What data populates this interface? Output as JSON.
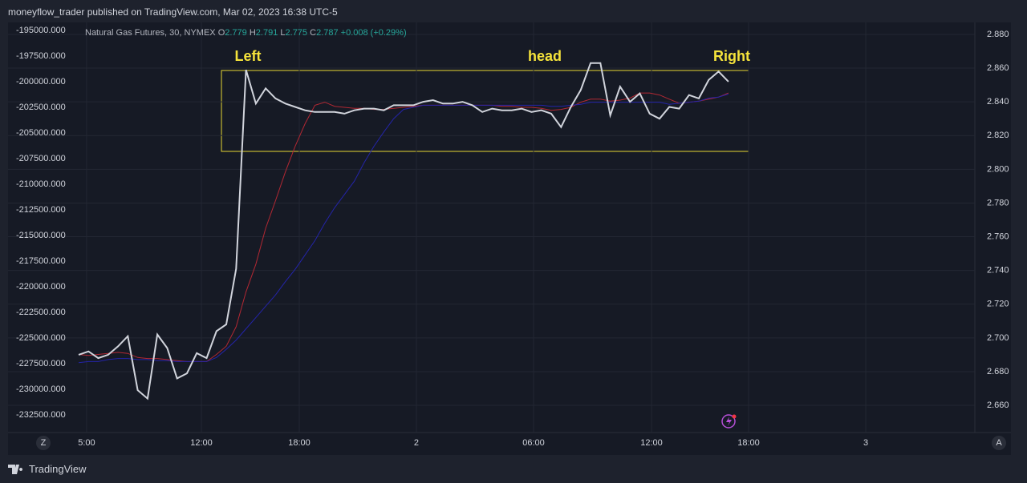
{
  "header": {
    "text": "moneyflow_trader published on TradingView.com, Mar 02, 2023 16:38 UTC-5"
  },
  "footer": {
    "brand": "TradingView",
    "left_button": "Z",
    "right_button": "A"
  },
  "chart_data": {
    "type": "line",
    "symbol": "Natural Gas Futures, 30, NYMEX",
    "ohlc": [
      {
        "key": "O",
        "value": 2.779
      },
      {
        "key": "H",
        "value": 2.791
      },
      {
        "key": "L",
        "value": 2.775
      },
      {
        "key": "C",
        "value": 2.787
      }
    ],
    "change": "+0.008 (+0.29%)",
    "annotations": [
      "Left",
      "head",
      "Right"
    ],
    "grid": true,
    "xlim": [
      -7.17,
      91.03
    ],
    "xticks": [
      {
        "value": 0.81,
        "label": "5:00"
      },
      {
        "value": 12.47,
        "label": "12:00"
      },
      {
        "value": 22.41,
        "label": "18:00"
      },
      {
        "value": 34.31,
        "label": "2"
      },
      {
        "value": 46.21,
        "label": "06:00"
      },
      {
        "value": 58.19,
        "label": "12:00"
      },
      {
        "value": 68.05,
        "label": "18:00"
      },
      {
        "value": 79.95,
        "label": "3"
      }
    ],
    "ylim": [
      -233984,
      -194219
    ],
    "yticks": [
      {
        "value": -195000,
        "label": "-195000.000"
      },
      {
        "value": -197500,
        "label": "-197500.000"
      },
      {
        "value": -200000,
        "label": "-200000.000"
      },
      {
        "value": -202500,
        "label": "-202500.000"
      },
      {
        "value": -205000,
        "label": "-205000.000"
      },
      {
        "value": -207500,
        "label": "-207500.000"
      },
      {
        "value": -210000,
        "label": "-210000.000"
      },
      {
        "value": -212500,
        "label": "-212500.000"
      },
      {
        "value": -215000,
        "label": "-215000.000"
      },
      {
        "value": -217500,
        "label": "-217500.000"
      },
      {
        "value": -220000,
        "label": "-220000.000"
      },
      {
        "value": -222500,
        "label": "-222500.000"
      },
      {
        "value": -225000,
        "label": "-225000.000"
      },
      {
        "value": -227500,
        "label": "-227500.000"
      },
      {
        "value": -230000,
        "label": "-230000.000"
      },
      {
        "value": -232500,
        "label": "-232500.000"
      }
    ],
    "y2lim": [
      2.6453,
      2.8871
    ],
    "y2ticks": [
      {
        "value": 2.88,
        "label": "2.880"
      },
      {
        "value": 2.86,
        "label": "2.860"
      },
      {
        "value": 2.84,
        "label": "2.840"
      },
      {
        "value": 2.82,
        "label": "2.820"
      },
      {
        "value": 2.8,
        "label": "2.800"
      },
      {
        "value": 2.78,
        "label": "2.780"
      },
      {
        "value": 2.76,
        "label": "2.760"
      },
      {
        "value": 2.74,
        "label": "2.740"
      },
      {
        "value": 2.72,
        "label": "2.720"
      },
      {
        "value": 2.7,
        "label": "2.700"
      },
      {
        "value": 2.68,
        "label": "2.680"
      },
      {
        "value": 2.66,
        "label": "2.660"
      }
    ],
    "series": [
      {
        "color": "#b22833",
        "values": [
          -226600,
          -226700,
          -226600,
          -226500,
          -226400,
          -226500,
          -226900,
          -227000,
          -227000,
          -227100,
          -227200,
          -227300,
          -227300,
          -227300,
          -226600,
          -225800,
          -223900,
          -220500,
          -217800,
          -214300,
          -211600,
          -208800,
          -206300,
          -204100,
          -202300,
          -202000,
          -202400,
          -202500,
          -202600,
          -202600,
          -202700,
          -202700,
          -202600,
          -202500,
          -202400,
          -202300,
          -202300,
          -202300,
          -202300,
          -202300,
          -202300,
          -202300,
          -202300,
          -202400,
          -202400,
          -202500,
          -202500,
          -202600,
          -202800,
          -202700,
          -202500,
          -202000,
          -201700,
          -201700,
          -201900,
          -201800,
          -201600,
          -201100,
          -201100,
          -201300,
          -201700,
          -202100,
          -202000,
          -201900,
          -201700,
          -201500,
          -201100
        ]
      },
      {
        "color": "#2424a8",
        "values": [
          -227400,
          -227300,
          -227300,
          -227100,
          -227000,
          -227000,
          -227100,
          -227100,
          -227200,
          -227200,
          -227300,
          -227300,
          -227300,
          -227300,
          -226900,
          -226100,
          -225200,
          -224100,
          -223000,
          -221900,
          -220800,
          -219500,
          -218300,
          -216900,
          -215500,
          -213800,
          -212300,
          -211000,
          -209700,
          -207900,
          -206300,
          -204900,
          -203600,
          -202700,
          -202500,
          -202300,
          -202300,
          -202300,
          -202300,
          -202300,
          -202300,
          -202300,
          -202300,
          -202300,
          -202300,
          -202300,
          -202300,
          -202300,
          -202400,
          -202400,
          -202300,
          -202200,
          -202000,
          -202000,
          -202000,
          -202000,
          -202000,
          -202000,
          -202000,
          -202000,
          -202200,
          -202100,
          -202000,
          -201900,
          -201600,
          -201500,
          -201200
        ]
      },
      {
        "color": "#d1d4dc",
        "axis": "y2",
        "values": [
          2.69,
          2.692,
          2.688,
          2.69,
          2.695,
          2.701,
          2.669,
          2.664,
          2.702,
          2.694,
          2.676,
          2.679,
          2.691,
          2.688,
          2.704,
          2.708,
          2.741,
          2.859,
          2.839,
          2.848,
          2.842,
          2.839,
          2.837,
          2.835,
          2.834,
          2.834,
          2.834,
          2.833,
          2.835,
          2.836,
          2.836,
          2.835,
          2.838,
          2.838,
          2.838,
          2.84,
          2.841,
          2.839,
          2.839,
          2.84,
          2.838,
          2.834,
          2.836,
          2.835,
          2.835,
          2.836,
          2.834,
          2.835,
          2.833,
          2.825,
          2.837,
          2.847,
          2.863,
          2.863,
          2.832,
          2.849,
          2.84,
          2.845,
          2.833,
          2.83,
          2.837,
          2.836,
          2.844,
          2.842,
          2.853,
          2.858,
          2.852
        ]
      }
    ]
  }
}
